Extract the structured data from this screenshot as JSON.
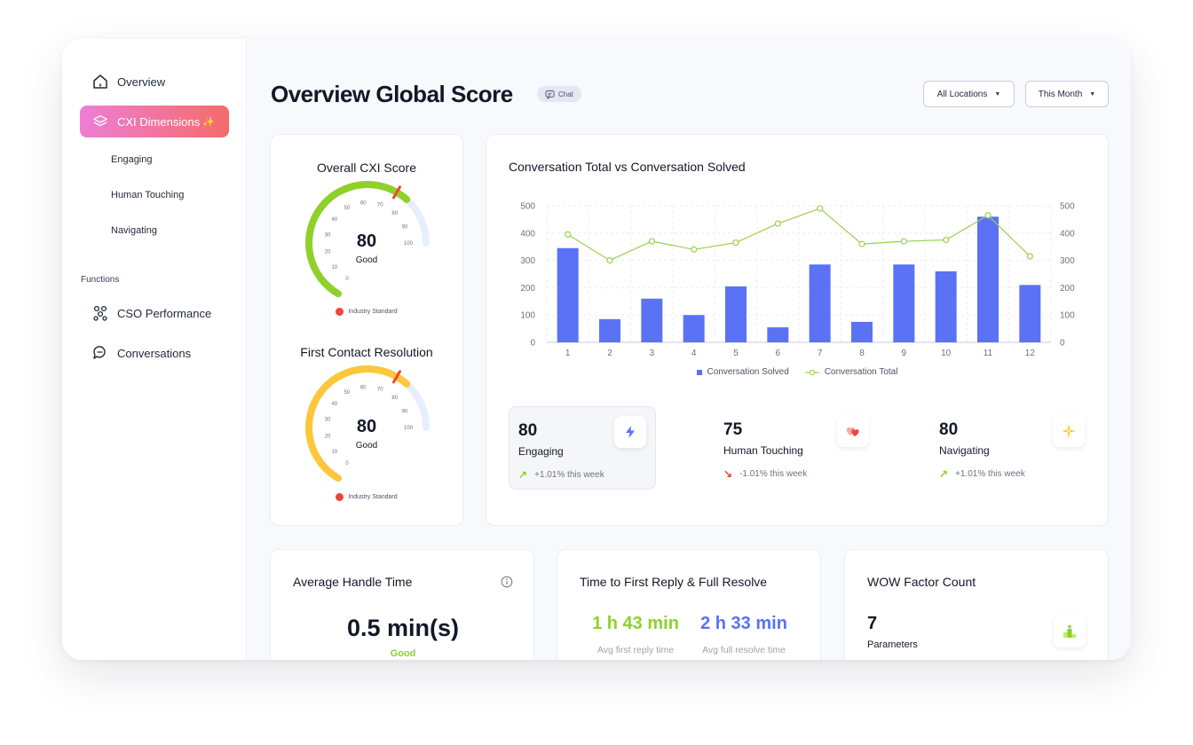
{
  "sidebar": {
    "overview": "Overview",
    "cxi_dimensions": "CXI Dimensions",
    "sub_items": [
      "Engaging",
      "Human Touching",
      "Navigating"
    ],
    "functions_label": "Functions",
    "cso_performance": "CSO Performance",
    "conversations": "Conversations"
  },
  "header": {
    "title": "Overview Global Score",
    "badge": "Chat",
    "location_dropdown": "All Locations",
    "period_dropdown": "This Month"
  },
  "gauges": [
    {
      "title": "Overall CXI Score",
      "value": "80",
      "label": "Good",
      "legend": "Industry Standard",
      "ticks": [
        "0",
        "10",
        "20",
        "30",
        "40",
        "50",
        "60",
        "70",
        "80",
        "90",
        "100"
      ],
      "score": 80,
      "standard": 75,
      "color": "#8fd12a"
    },
    {
      "title": "First Contact Resolution",
      "value": "80",
      "label": "Good",
      "legend": "Industry Standard",
      "ticks": [
        "0",
        "10",
        "20",
        "30",
        "40",
        "50",
        "60",
        "70",
        "80",
        "90",
        "100"
      ],
      "score": 80,
      "standard": 75,
      "color": "#fcc73a"
    }
  ],
  "chart_data": {
    "type": "bar",
    "title": "Conversation Total vs Conversation Solved",
    "categories": [
      "1",
      "2",
      "3",
      "4",
      "5",
      "6",
      "7",
      "8",
      "9",
      "10",
      "11",
      "12"
    ],
    "series": [
      {
        "name": "Conversation Solved",
        "type": "bar",
        "values": [
          345,
          85,
          160,
          100,
          205,
          55,
          285,
          75,
          285,
          260,
          460,
          210
        ],
        "color": "#5b72f5"
      },
      {
        "name": "Conversation Total",
        "type": "line",
        "values": [
          395,
          300,
          370,
          340,
          365,
          435,
          490,
          360,
          370,
          375,
          465,
          315
        ],
        "color": "#9bd14a"
      }
    ],
    "y_ticks": [
      "0",
      "100",
      "200",
      "300",
      "400",
      "500"
    ],
    "ylim": [
      0,
      500
    ],
    "y2lim": [
      0,
      500
    ],
    "grid": true,
    "legend": "bottom"
  },
  "stats": [
    {
      "value": "80",
      "name": "Engaging",
      "trend": "+1.01% this week",
      "direction": "up",
      "icon": "lightning-icon"
    },
    {
      "value": "75",
      "name": "Human Touching",
      "trend": "-1.01% this week",
      "direction": "down",
      "icon": "hearts-icon"
    },
    {
      "value": "80",
      "name": "Navigating",
      "trend": "+1.01% this week",
      "direction": "up",
      "icon": "sparkle-icon"
    }
  ],
  "bottom_cards": {
    "aht": {
      "title": "Average Handle Time",
      "value": "0.5 min(s)",
      "label": "Good"
    },
    "reply": {
      "title": "Time to First Reply & Full Resolve",
      "first_value": "1 h 43 min",
      "first_label": "Avg first reply time",
      "full_value": "2 h 33 min",
      "full_label": "Avg full resolve time"
    },
    "wow": {
      "title": "WOW Factor Count",
      "value": "7",
      "label": "Parameters"
    }
  },
  "colors": {
    "accent_blue": "#5b72f5",
    "accent_green": "#8fd12a",
    "accent_yellow": "#fcc73a",
    "trend_up": "#8fd12a",
    "trend_down": "#ef4636"
  }
}
